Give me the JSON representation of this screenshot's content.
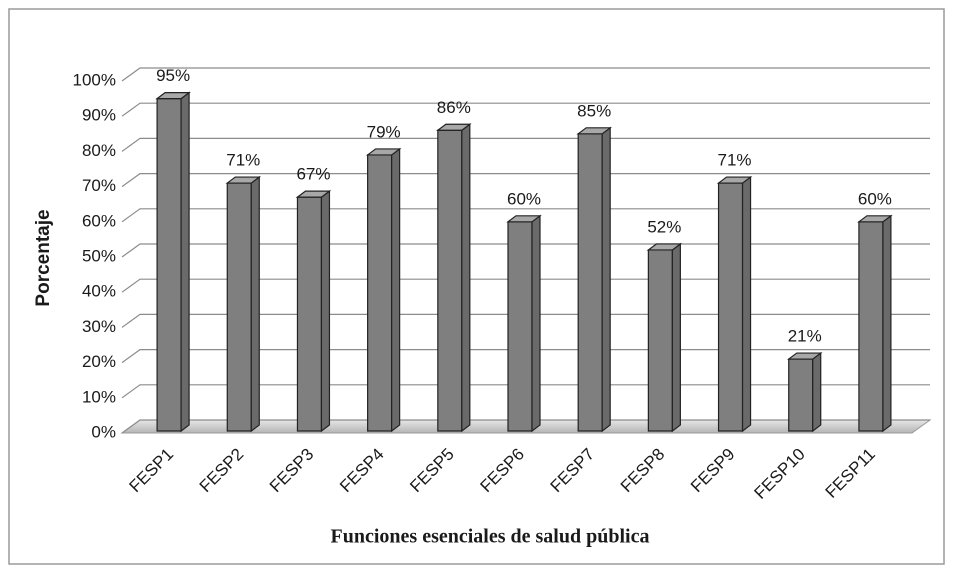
{
  "chart_data": {
    "type": "bar3d",
    "categories": [
      "FESP1",
      "FESP2",
      "FESP3",
      "FESP4",
      "FESP5",
      "FESP6",
      "FESP7",
      "FESP8",
      "FESP9",
      "FESP10",
      "FESP11"
    ],
    "values": [
      95,
      71,
      67,
      79,
      86,
      60,
      85,
      52,
      71,
      21,
      60
    ],
    "value_labels": [
      "95%",
      "71%",
      "67%",
      "79%",
      "86%",
      "60%",
      "85%",
      "52%",
      "71%",
      "21%",
      "60%"
    ],
    "color": "#7f7f7f",
    "ylim": [
      0,
      100
    ],
    "yticks": [
      {
        "value": 0,
        "label": "0%"
      },
      {
        "value": 10,
        "label": "10%"
      },
      {
        "value": 20,
        "label": "20%"
      },
      {
        "value": 30,
        "label": "30%"
      },
      {
        "value": 40,
        "label": "40%"
      },
      {
        "value": 50,
        "label": "50%"
      },
      {
        "value": 60,
        "label": "60%"
      },
      {
        "value": 70,
        "label": "70%"
      },
      {
        "value": 80,
        "label": "80%"
      },
      {
        "value": 90,
        "label": "90%"
      },
      {
        "value": 100,
        "label": "100%"
      }
    ],
    "grid": true,
    "ylabel": "Porcentaje",
    "xlabel": "Funciones esenciales de salud pública"
  }
}
